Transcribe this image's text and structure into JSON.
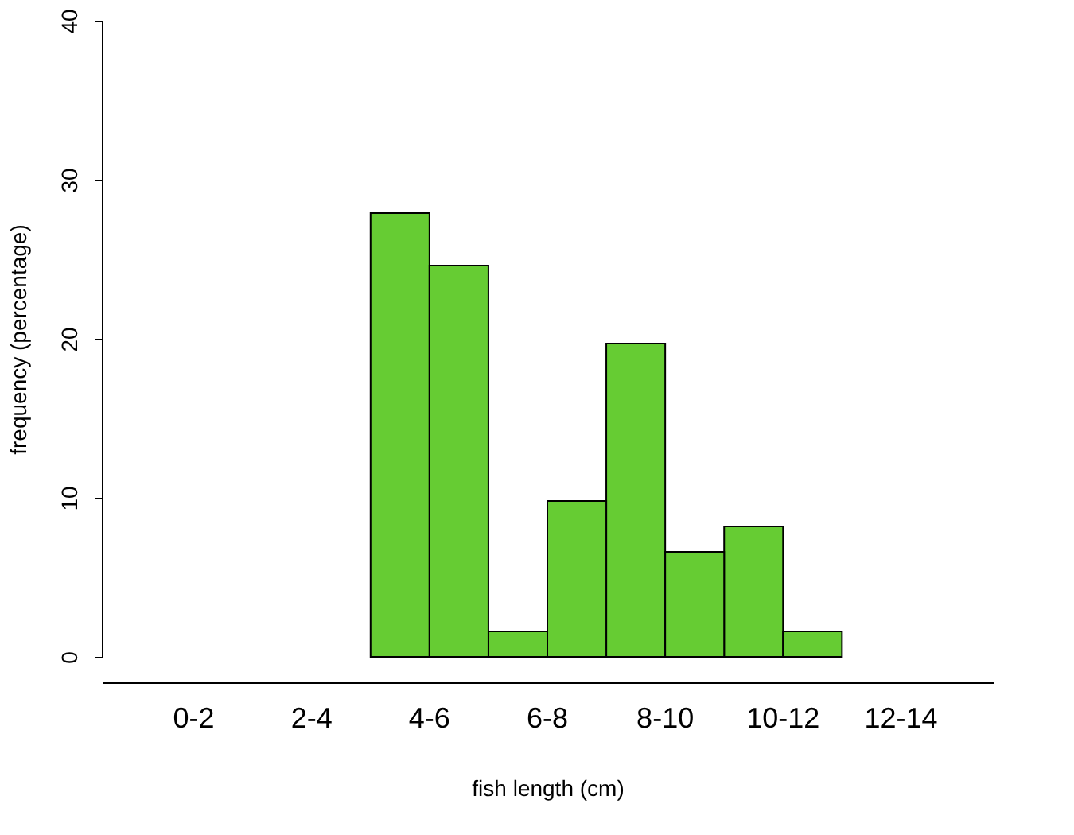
{
  "chart_data": {
    "type": "bar",
    "xlabel": "fish length (cm)",
    "ylabel": "frequency (percentage)",
    "categories": [
      "0-2",
      "2-4",
      "4-6",
      "6-8",
      "8-10",
      "10-12",
      "12-14"
    ],
    "series": [
      {
        "color": "#66cc33",
        "values": [
          null,
          null,
          27.9,
          1.6,
          19.7,
          8.2,
          null
        ]
      },
      {
        "color": "#66cc33",
        "values": [
          null,
          null,
          24.6,
          9.8,
          6.6,
          1.6,
          null
        ]
      }
    ],
    "ylim": [
      0,
      40
    ],
    "yticks": [
      0,
      10,
      20,
      30,
      40
    ],
    "grid": false,
    "legend": false
  }
}
